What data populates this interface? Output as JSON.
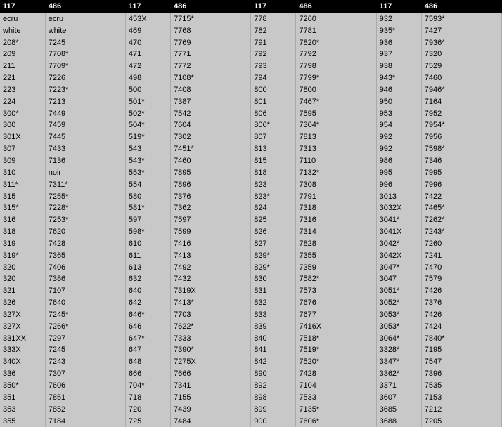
{
  "headers": [
    "117",
    "486",
    "117",
    "486",
    "117",
    "486",
    "117",
    "486"
  ],
  "rows": [
    [
      "ecru",
      "ecru",
      "453X",
      "7715*",
      "778",
      "7260",
      "932",
      "7593*"
    ],
    [
      "white",
      "white",
      "469",
      "7768",
      "782",
      "7781",
      "935*",
      "7427"
    ],
    [
      "208*",
      "7245",
      "470",
      "7769",
      "791",
      "7820*",
      "936",
      "7936*"
    ],
    [
      "209",
      "7708*",
      "471",
      "7771",
      "792",
      "7792",
      "937",
      "7320"
    ],
    [
      "211",
      "7709*",
      "472",
      "7772",
      "793",
      "7798",
      "938",
      "7529"
    ],
    [
      "221",
      "7226",
      "498",
      "7108*",
      "794",
      "7799*",
      "943*",
      "7460"
    ],
    [
      "223",
      "7223*",
      "500",
      "7408",
      "800",
      "7800",
      "946",
      "7946*"
    ],
    [
      "224",
      "7213",
      "501*",
      "7387",
      "801",
      "7467*",
      "950",
      "7164"
    ],
    [
      "300*",
      "7449",
      "502*",
      "7542",
      "806",
      "7595",
      "953",
      "7952"
    ],
    [
      "300",
      "7459",
      "504*",
      "7604",
      "806*",
      "7304*",
      "954",
      "7954*"
    ],
    [
      "301X",
      "7445",
      "519*",
      "7302",
      "807",
      "7813",
      "992",
      "7956"
    ],
    [
      "307",
      "7433",
      "543",
      "7451*",
      "813",
      "7313",
      "992",
      "7598*"
    ],
    [
      "309",
      "7136",
      "543*",
      "7460",
      "815",
      "7110",
      "986",
      "7346"
    ],
    [
      "310",
      "noir",
      "553*",
      "7895",
      "818",
      "7132*",
      "995",
      "7995"
    ],
    [
      "311*",
      "7311*",
      "554",
      "7896",
      "823",
      "7308",
      "996",
      "7996"
    ],
    [
      "315",
      "7255*",
      "580",
      "7376",
      "823*",
      "7791",
      "3013",
      "7422"
    ],
    [
      "315*",
      "7228*",
      "581*",
      "7362",
      "824",
      "7318",
      "3032X",
      "7465*"
    ],
    [
      "316",
      "7253*",
      "597",
      "7597",
      "825",
      "7316",
      "3041*",
      "7262*"
    ],
    [
      "318",
      "7620",
      "598*",
      "7599",
      "826",
      "7314",
      "3041X",
      "7243*"
    ],
    [
      "319",
      "7428",
      "610",
      "7416",
      "827",
      "7828",
      "3042*",
      "7260"
    ],
    [
      "319*",
      "7365",
      "611",
      "7413",
      "829*",
      "7355",
      "3042X",
      "7241"
    ],
    [
      "320",
      "7406",
      "613",
      "7492",
      "829*",
      "7359",
      "3047*",
      "7470"
    ],
    [
      "320",
      "7386",
      "632",
      "7432",
      "830",
      "7582*",
      "3047",
      "7579"
    ],
    [
      "321",
      "7107",
      "640",
      "7319X",
      "831",
      "7573",
      "3051*",
      "7426"
    ],
    [
      "326",
      "7640",
      "642",
      "7413*",
      "832",
      "7676",
      "3052*",
      "7376"
    ],
    [
      "327X",
      "7245*",
      "646*",
      "7703",
      "833",
      "7677",
      "3053*",
      "7426"
    ],
    [
      "327X",
      "7266*",
      "646",
      "7622*",
      "839",
      "7416X",
      "3053*",
      "7424"
    ],
    [
      "331XX",
      "7297",
      "647*",
      "7333",
      "840",
      "7518*",
      "3064*",
      "7840*"
    ],
    [
      "333X",
      "7245",
      "647",
      "7390*",
      "841",
      "7519*",
      "3328*",
      "7195"
    ],
    [
      "340X",
      "7243",
      "648",
      "7275X",
      "842",
      "7520*",
      "3347*",
      "7547"
    ],
    [
      "336",
      "7307",
      "666",
      "7666",
      "890",
      "7428",
      "3362*",
      "7396"
    ],
    [
      "350*",
      "7606",
      "704*",
      "7341",
      "892",
      "7104",
      "3371",
      "7535"
    ],
    [
      "351",
      "7851",
      "718",
      "7155",
      "898",
      "7533",
      "3607",
      "7153"
    ],
    [
      "353",
      "7852",
      "720",
      "7439",
      "899",
      "7135*",
      "3685",
      "7212"
    ],
    [
      "355",
      "7184",
      "725",
      "7484",
      "900",
      "7606*",
      "3688",
      "7205"
    ]
  ],
  "shading": {
    "pairs": {
      "0": "shade2",
      "1": "shade1",
      "2": "shade2",
      "3": "shade1"
    }
  }
}
